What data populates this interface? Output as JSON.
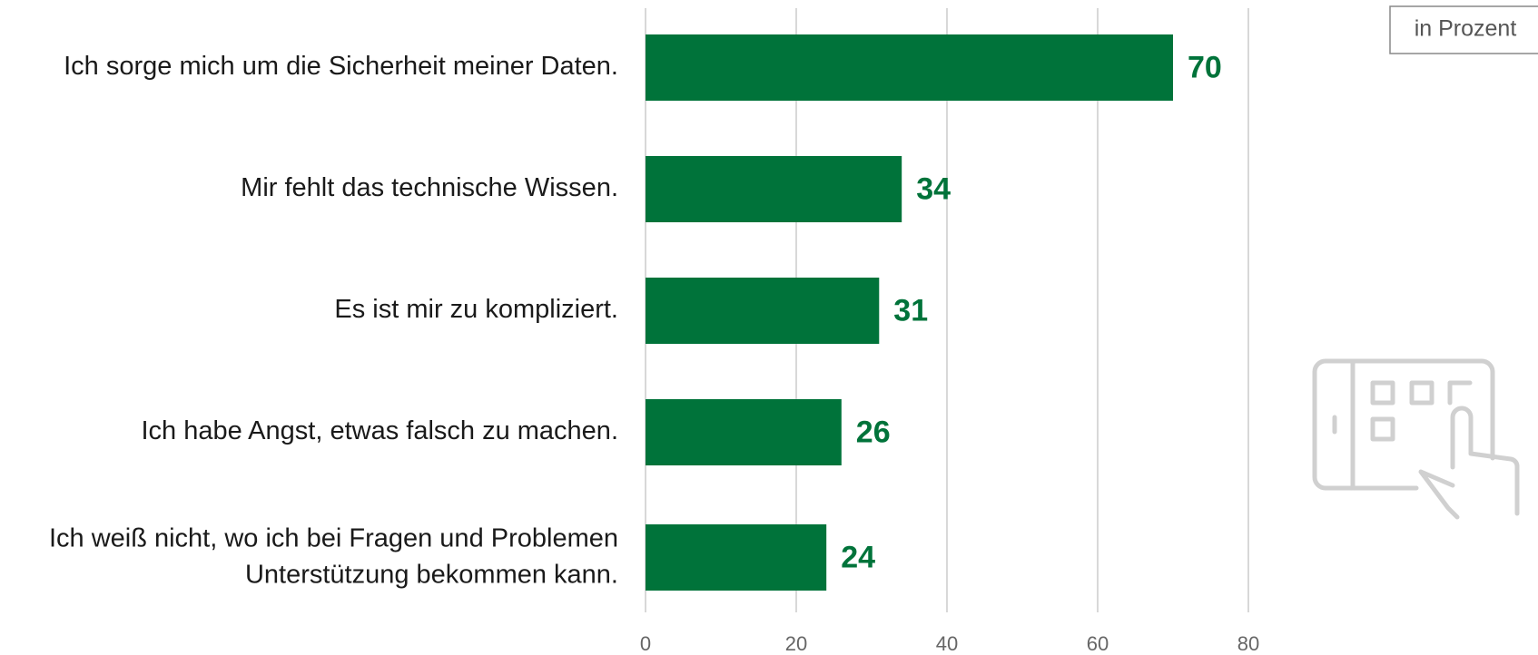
{
  "chart_data": {
    "type": "hbar",
    "unit": "in Prozent",
    "categories": [
      "Ich sorge mich um die Sicherheit meiner Daten.",
      "Mir fehlt das technische Wissen.",
      "Es ist mir zu kompliziert.",
      "Ich habe Angst, etwas falsch zu machen.",
      [
        "Ich weiß nicht, wo ich bei Fragen und Problemen",
        "Unterstützung bekommen kann."
      ]
    ],
    "values": [
      70,
      34,
      31,
      26,
      24
    ],
    "color": "#00733a",
    "xlim": [
      0,
      80
    ],
    "xticks": [
      0,
      20,
      40,
      60,
      80
    ],
    "grid": true
  }
}
